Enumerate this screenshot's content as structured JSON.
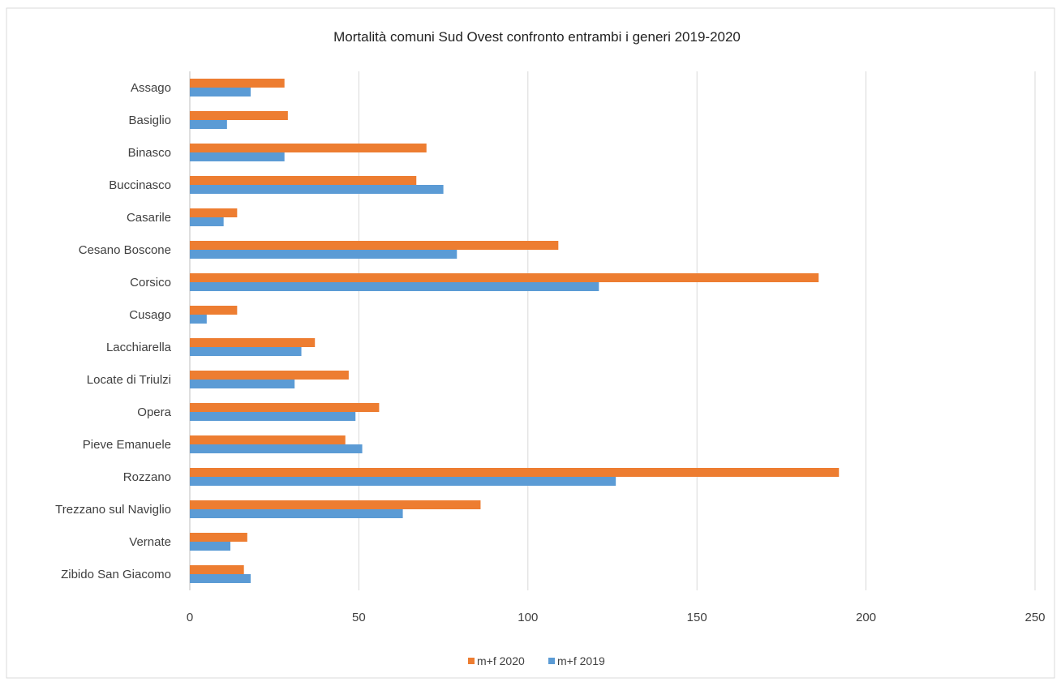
{
  "chart_data": {
    "type": "bar",
    "orientation": "horizontal",
    "title": "Mortalità comuni Sud Ovest confronto entrambi i generi 2019-2020",
    "xlabel": "",
    "ylabel": "",
    "xlim": [
      0,
      250
    ],
    "x_ticks": [
      0,
      50,
      100,
      150,
      200,
      250
    ],
    "x_tick_labels": [
      "0",
      "50",
      "100",
      "150",
      "200",
      "250"
    ],
    "grid": true,
    "legend_position": "bottom",
    "categories": [
      "Assago",
      "Basiglio",
      "Binasco",
      "Buccinasco",
      "Casarile",
      "Cesano Boscone",
      "Corsico",
      "Cusago",
      "Lacchiarella",
      "Locate di Triulzi",
      "Opera",
      "Pieve Emanuele",
      "Rozzano",
      "Trezzano sul Naviglio",
      "Vernate",
      "Zibido San Giacomo"
    ],
    "series": [
      {
        "name": "m+f 2020",
        "color": "#ED7D31",
        "values": [
          28,
          29,
          70,
          67,
          14,
          109,
          186,
          14,
          37,
          47,
          56,
          46,
          192,
          86,
          17,
          16
        ]
      },
      {
        "name": "m+f 2019",
        "color": "#5B9BD5",
        "values": [
          18,
          11,
          28,
          75,
          10,
          79,
          121,
          5,
          33,
          31,
          49,
          51,
          126,
          63,
          12,
          18
        ]
      }
    ]
  }
}
